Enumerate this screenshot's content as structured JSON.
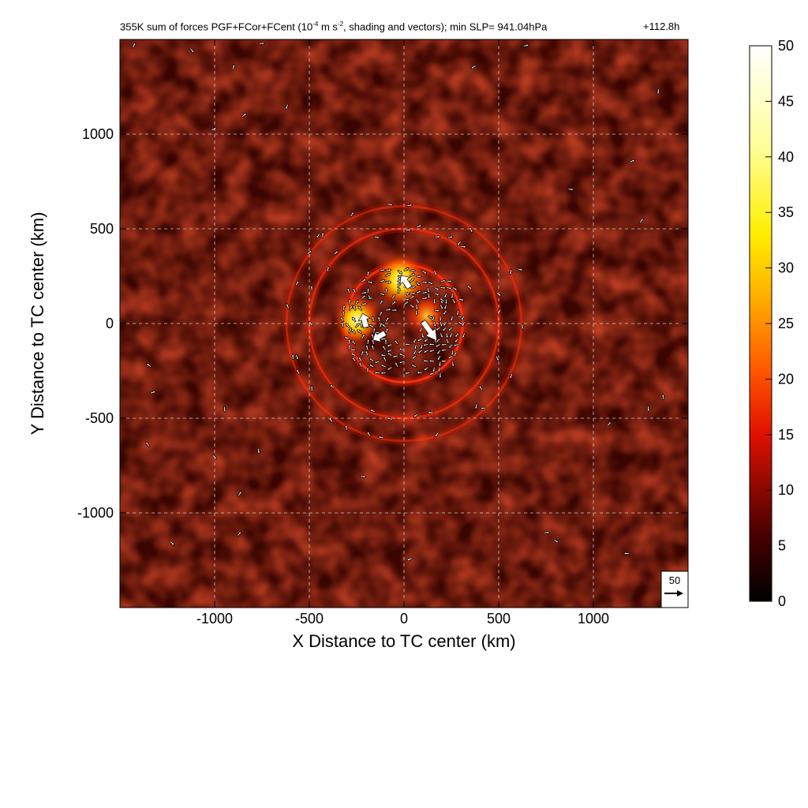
{
  "title": {
    "prefix": "355K sum of forces PGF+FCor+FCent (10",
    "exp1": "-4",
    "mid": " m s",
    "exp2": "-2",
    "suffix": ", shading and vectors); min SLP= 941.04hPa",
    "time": "+112.8h"
  },
  "chart_data": {
    "type": "heatmap",
    "xlabel": "X Distance to TC center (km)",
    "ylabel": "Y Distance to TC center (km)",
    "xlim": [
      -1500,
      1500
    ],
    "ylim": [
      -1500,
      1500
    ],
    "x_ticks": [
      -1000,
      -500,
      0,
      500,
      1000
    ],
    "y_ticks": [
      -1000,
      -500,
      0,
      500,
      1000
    ],
    "grid": true,
    "colorbar": {
      "min": 0,
      "max": 50,
      "ticks": [
        0,
        5,
        10,
        15,
        20,
        25,
        30,
        35,
        40,
        45,
        50
      ],
      "colors": [
        "#000000",
        "#4a0000",
        "#9a0a00",
        "#e01000",
        "#ff5a00",
        "#ffaa00",
        "#ffee00",
        "#ffff9a",
        "#ffffff"
      ]
    },
    "reference_vector": {
      "label": "50",
      "magnitude": 50
    },
    "features": [
      {
        "kind": "ring",
        "center": [
          0,
          0
        ],
        "radius_km": 310,
        "intensity": 15
      },
      {
        "kind": "ring",
        "center": [
          0,
          0
        ],
        "radius_km": 500,
        "intensity": 10
      },
      {
        "kind": "ring",
        "center": [
          0,
          0
        ],
        "radius_km": 620,
        "intensity": 8
      },
      {
        "kind": "blob",
        "center": [
          -20,
          230
        ],
        "intensity": 40
      },
      {
        "kind": "blob",
        "center": [
          -250,
          20
        ],
        "intensity": 35
      },
      {
        "kind": "blob",
        "center": [
          120,
          40
        ],
        "intensity": 30
      }
    ],
    "large_vectors": [
      {
        "x": 30,
        "y": 190,
        "u": -25,
        "v": 35
      },
      {
        "x": 100,
        "y": 10,
        "u": 40,
        "v": -55
      },
      {
        "x": -100,
        "y": -50,
        "u": -35,
        "v": -20
      },
      {
        "x": -200,
        "y": -20,
        "u": -10,
        "v": 40
      }
    ]
  },
  "icons": {
    "ref_arrow": "arrow-right-icon"
  }
}
